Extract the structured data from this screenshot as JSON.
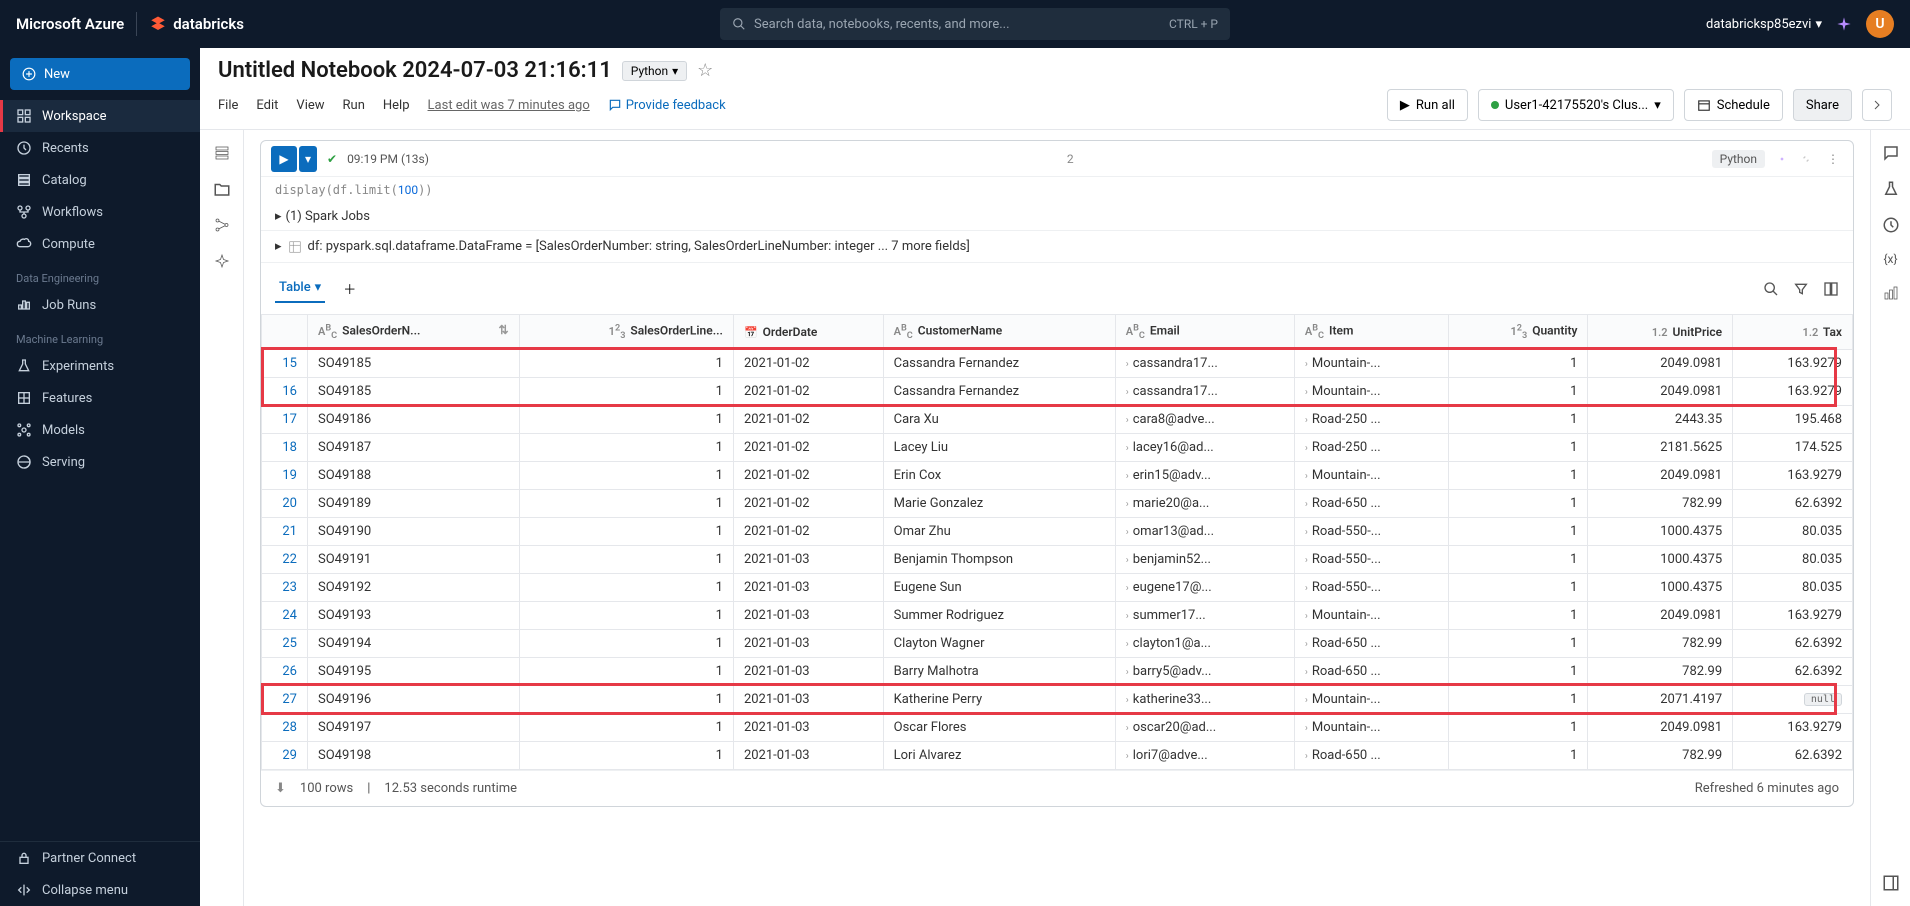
{
  "topbar": {
    "azure_label": "Microsoft Azure",
    "brand_label": "databricks",
    "search_placeholder": "Search data, notebooks, recents, and more...",
    "shortcut": "CTRL + P",
    "username": "databricksp85ezvi",
    "avatar_letter": "U"
  },
  "sidebar": {
    "new_label": "New",
    "items": [
      {
        "icon": "workspace",
        "label": "Workspace",
        "active": true
      },
      {
        "icon": "recent",
        "label": "Recents"
      },
      {
        "icon": "catalog",
        "label": "Catalog"
      },
      {
        "icon": "workflow",
        "label": "Workflows"
      },
      {
        "icon": "compute",
        "label": "Compute"
      }
    ],
    "sections": [
      {
        "title": "Data Engineering",
        "items": [
          {
            "icon": "jobruns",
            "label": "Job Runs"
          }
        ]
      },
      {
        "title": "Machine Learning",
        "items": [
          {
            "icon": "flask",
            "label": "Experiments"
          },
          {
            "icon": "features",
            "label": "Features"
          },
          {
            "icon": "models",
            "label": "Models"
          },
          {
            "icon": "serving",
            "label": "Serving"
          }
        ]
      }
    ],
    "bottom": [
      {
        "icon": "lock",
        "label": "Partner Connect"
      },
      {
        "icon": "collapse",
        "label": "Collapse menu"
      }
    ]
  },
  "notebook": {
    "title": "Untitled Notebook 2024-07-03 21:16:11",
    "language": "Python",
    "menus": {
      "file": "File",
      "edit": "Edit",
      "view": "View",
      "run": "Run",
      "help": "Help"
    },
    "last_edit": "Last edit was 7 minutes ago",
    "feedback": "Provide feedback",
    "buttons": {
      "run_all": "Run all",
      "cluster": "User1-42175520's Clus...",
      "schedule": "Schedule",
      "share": "Share"
    }
  },
  "cell": {
    "run_time": "09:19 PM (13s)",
    "cell_number": "2",
    "language": "Python",
    "spark_jobs": "(1) Spark Jobs",
    "df_info": "df:  pyspark.sql.dataframe.DataFrame = [SalesOrderNumber: string, SalesOrderLineNumber: integer ... 7 more fields]",
    "table_tab": "Table",
    "footer_rows": "100 rows",
    "footer_runtime": "12.53 seconds runtime",
    "refreshed": "Refreshed 6 minutes ago"
  },
  "table": {
    "columns": [
      {
        "name": "row",
        "label": "",
        "width": 50
      },
      {
        "name": "so",
        "label": "SalesOrderN...",
        "type": "abc",
        "sort": true
      },
      {
        "name": "line",
        "label": "SalesOrderLine...",
        "type": "123",
        "num": true
      },
      {
        "name": "date",
        "label": "OrderDate",
        "type": "cal"
      },
      {
        "name": "cust",
        "label": "CustomerName",
        "type": "abc"
      },
      {
        "name": "email",
        "label": "Email",
        "type": "abc",
        "chev": true
      },
      {
        "name": "item",
        "label": "Item",
        "type": "abc",
        "chev": true
      },
      {
        "name": "qty",
        "label": "Quantity",
        "type": "123",
        "num": true
      },
      {
        "name": "price",
        "label": "UnitPrice",
        "type": "1.2",
        "num": true
      },
      {
        "name": "tax",
        "label": "Tax",
        "type": "1.2",
        "num": true
      }
    ],
    "highlight_rows": [
      15,
      16,
      27
    ],
    "rows": [
      {
        "n": 15,
        "so": "SO49185",
        "line": 1,
        "date": "2021-01-02",
        "cust": "Cassandra Fernandez",
        "email": "cassandra17...",
        "item": "Mountain-...",
        "qty": 1,
        "price": "2049.0981",
        "tax": "163.9279"
      },
      {
        "n": 16,
        "so": "SO49185",
        "line": 1,
        "date": "2021-01-02",
        "cust": "Cassandra Fernandez",
        "email": "cassandra17...",
        "item": "Mountain-...",
        "qty": 1,
        "price": "2049.0981",
        "tax": "163.9279"
      },
      {
        "n": 17,
        "so": "SO49186",
        "line": 1,
        "date": "2021-01-02",
        "cust": "Cara Xu",
        "email": "cara8@adve...",
        "item": "Road-250 ...",
        "qty": 1,
        "price": "2443.35",
        "tax": "195.468"
      },
      {
        "n": 18,
        "so": "SO49187",
        "line": 1,
        "date": "2021-01-02",
        "cust": "Lacey Liu",
        "email": "lacey16@ad...",
        "item": "Road-250 ...",
        "qty": 1,
        "price": "2181.5625",
        "tax": "174.525"
      },
      {
        "n": 19,
        "so": "SO49188",
        "line": 1,
        "date": "2021-01-02",
        "cust": "Erin Cox",
        "email": "erin15@adv...",
        "item": "Mountain-...",
        "qty": 1,
        "price": "2049.0981",
        "tax": "163.9279"
      },
      {
        "n": 20,
        "so": "SO49189",
        "line": 1,
        "date": "2021-01-02",
        "cust": "Marie Gonzalez",
        "email": "marie20@a...",
        "item": "Road-650 ...",
        "qty": 1,
        "price": "782.99",
        "tax": "62.6392"
      },
      {
        "n": 21,
        "so": "SO49190",
        "line": 1,
        "date": "2021-01-02",
        "cust": "Omar Zhu",
        "email": "omar13@ad...",
        "item": "Road-550-...",
        "qty": 1,
        "price": "1000.4375",
        "tax": "80.035"
      },
      {
        "n": 22,
        "so": "SO49191",
        "line": 1,
        "date": "2021-01-03",
        "cust": "Benjamin Thompson",
        "email": "benjamin52...",
        "item": "Road-550-...",
        "qty": 1,
        "price": "1000.4375",
        "tax": "80.035"
      },
      {
        "n": 23,
        "so": "SO49192",
        "line": 1,
        "date": "2021-01-03",
        "cust": "Eugene Sun",
        "email": "eugene17@...",
        "item": "Road-550-...",
        "qty": 1,
        "price": "1000.4375",
        "tax": "80.035"
      },
      {
        "n": 24,
        "so": "SO49193",
        "line": 1,
        "date": "2021-01-03",
        "cust": "Summer Rodriguez",
        "email": "summer17...",
        "item": "Mountain-...",
        "qty": 1,
        "price": "2049.0981",
        "tax": "163.9279"
      },
      {
        "n": 25,
        "so": "SO49194",
        "line": 1,
        "date": "2021-01-03",
        "cust": "Clayton Wagner",
        "email": "clayton1@a...",
        "item": "Road-650 ...",
        "qty": 1,
        "price": "782.99",
        "tax": "62.6392"
      },
      {
        "n": 26,
        "so": "SO49195",
        "line": 1,
        "date": "2021-01-03",
        "cust": "Barry Malhotra",
        "email": "barry5@adv...",
        "item": "Road-650 ...",
        "qty": 1,
        "price": "782.99",
        "tax": "62.6392"
      },
      {
        "n": 27,
        "so": "SO49196",
        "line": 1,
        "date": "2021-01-03",
        "cust": "Katherine Perry",
        "email": "katherine33...",
        "item": "Mountain-...",
        "qty": 1,
        "price": "2071.4197",
        "tax": null
      },
      {
        "n": 28,
        "so": "SO49197",
        "line": 1,
        "date": "2021-01-03",
        "cust": "Oscar Flores",
        "email": "oscar20@ad...",
        "item": "Mountain-...",
        "qty": 1,
        "price": "2049.0981",
        "tax": "163.9279"
      },
      {
        "n": 29,
        "so": "SO49198",
        "line": 1,
        "date": "2021-01-03",
        "cust": "Lori Alvarez",
        "email": "lori7@adve...",
        "item": "Road-650 ...",
        "qty": 1,
        "price": "782.99",
        "tax": "62.6392"
      }
    ]
  },
  "colors": {
    "accent": "#0b6cbd",
    "dark": "#0e1a2b",
    "highlight": "#e63946",
    "green": "#2ea043",
    "avatar": "#e67e22"
  }
}
